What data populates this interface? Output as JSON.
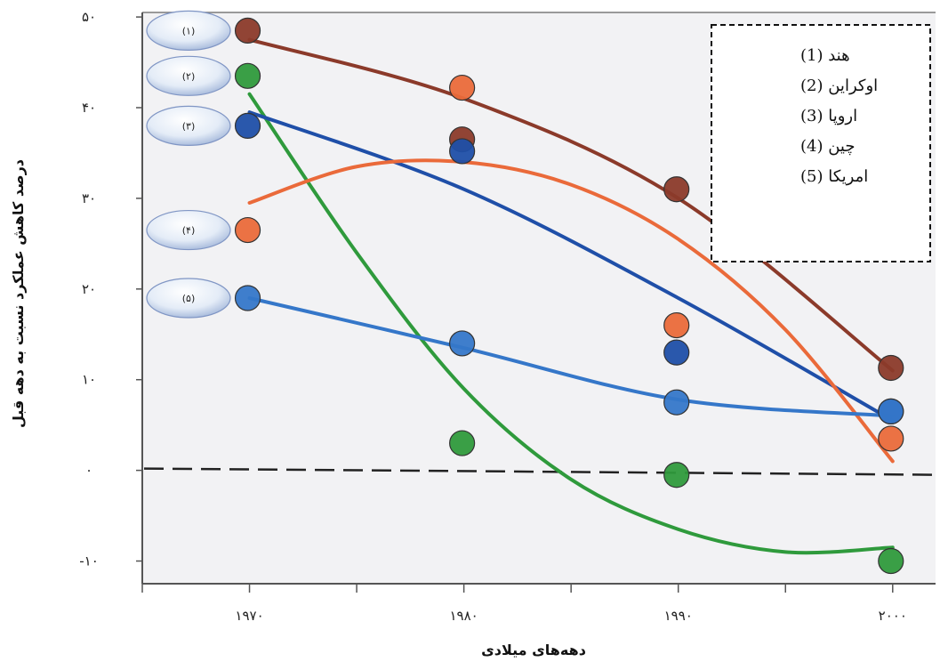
{
  "chart_data": {
    "type": "scatter",
    "title": "",
    "xlabel": "دهه‌های میلادی",
    "ylabel": "درصد کاهش عملکرد نسبت به دهه قبل",
    "xlim": [
      1965,
      2002
    ],
    "ylim": [
      -12.5,
      50.5
    ],
    "x_ticks": [
      1970,
      1980,
      1990,
      2000
    ],
    "x_tick_labels": [
      "۱۹۷۰",
      "۱۹۸۰",
      "۱۹۹۰",
      "۲۰۰۰"
    ],
    "y_ticks": [
      -10,
      0,
      10,
      20,
      30,
      40,
      50
    ],
    "y_tick_labels": [
      "-۱۰",
      "۰",
      "۱۰",
      "۲۰",
      "۳۰",
      "۴۰",
      "۵۰"
    ],
    "reference_line": {
      "y": 0,
      "style": "dashed"
    },
    "grid": false,
    "legend_position": "top-right",
    "series": [
      {
        "name": "هند (1)",
        "marker_label": "(۱)",
        "color": "#8b3a2a",
        "x": [
          1970,
          1980,
          1990,
          2000
        ],
        "y": [
          48.5,
          36.5,
          31,
          11.3
        ],
        "fit": [
          [
            1970,
            47.5
          ],
          [
            1980,
            41
          ],
          [
            1990,
            30
          ],
          [
            2000,
            11
          ]
        ]
      },
      {
        "name": "اوکراین (2)",
        "marker_label": "(۲)",
        "color": "#2f9a3c",
        "x": [
          1970,
          1980,
          1990,
          2000
        ],
        "y": [
          43.5,
          3,
          -0.5,
          -10
        ],
        "fit": [
          [
            1970,
            41.5
          ],
          [
            1975,
            24
          ],
          [
            1980,
            9
          ],
          [
            1985,
            -1
          ],
          [
            1990,
            -6.5
          ],
          [
            1995,
            -9
          ],
          [
            2000,
            -8.5
          ]
        ]
      },
      {
        "name": "اروپا (3)",
        "marker_label": "(۳)",
        "color": "#1f4fa8",
        "x": [
          1970,
          1980,
          1990,
          2000
        ],
        "y": [
          38,
          35.2,
          13,
          6.5
        ],
        "fit": [
          [
            1970,
            39.5
          ],
          [
            1980,
            31
          ],
          [
            1990,
            19
          ],
          [
            2000,
            5.5
          ]
        ]
      },
      {
        "name": "چین (4)",
        "marker_label": "(۴)",
        "color": "#ea6a3a",
        "x": [
          1970,
          1980,
          1990,
          2000
        ],
        "y": [
          26.5,
          42.2,
          16,
          3.5
        ],
        "fit": [
          [
            1970,
            29.5
          ],
          [
            1975,
            33.5
          ],
          [
            1980,
            34
          ],
          [
            1985,
            31.5
          ],
          [
            1990,
            25.5
          ],
          [
            1995,
            15.5
          ],
          [
            2000,
            1
          ]
        ]
      },
      {
        "name": "امریکا (5)",
        "marker_label": "(۵)",
        "color": "#3577c9",
        "x": [
          1970,
          1980,
          1990,
          2000
        ],
        "y": [
          19,
          14,
          7.5,
          6.5
        ],
        "fit": [
          [
            1970,
            19
          ],
          [
            1980,
            13.5
          ],
          [
            1990,
            7.8
          ],
          [
            2000,
            6
          ]
        ]
      }
    ]
  }
}
